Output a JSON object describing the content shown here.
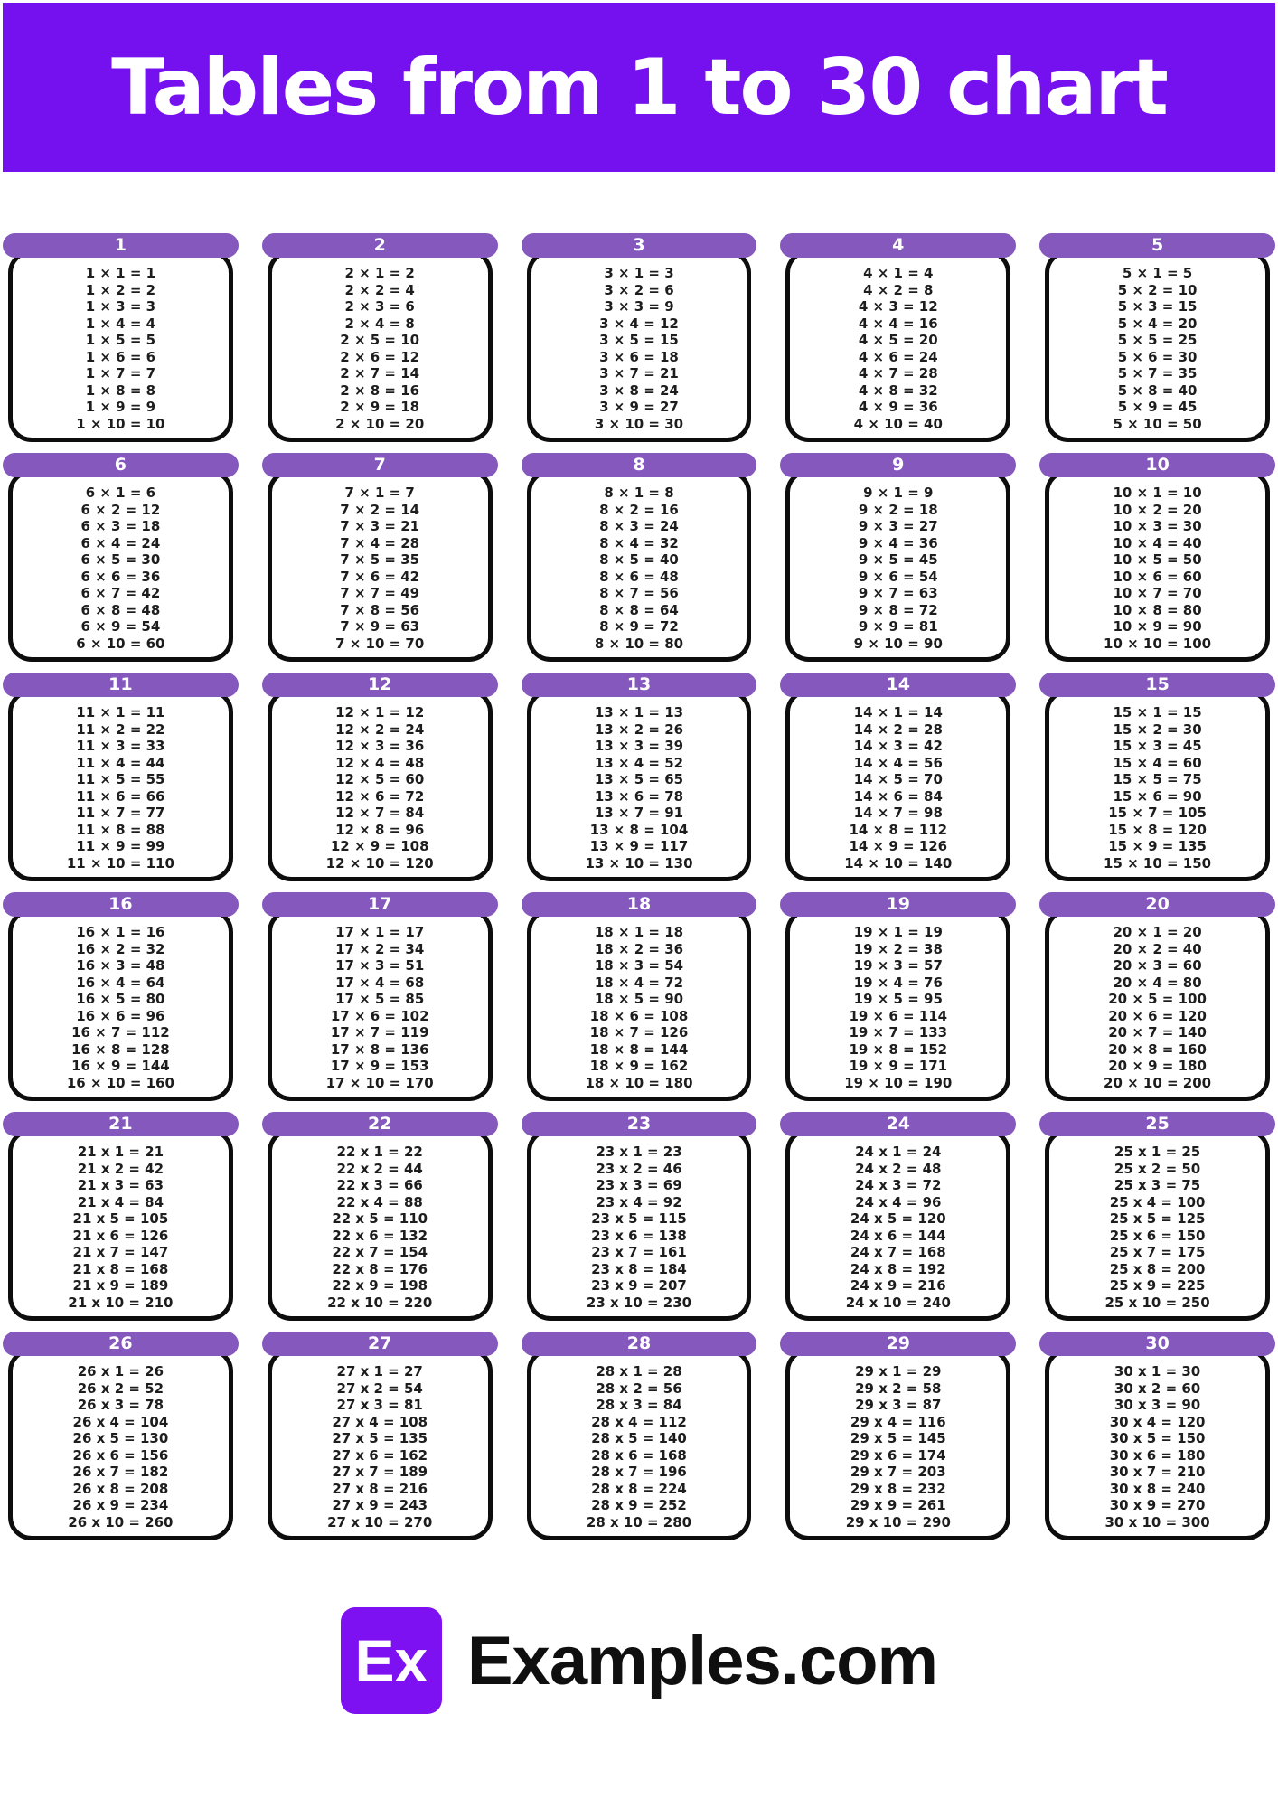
{
  "banner": {
    "title": "Tables from 1 to 30 chart",
    "bg": "#7511EF",
    "text_color": "#FFFFFF"
  },
  "colors": {
    "card_header": "#8558BE",
    "card_border": "#0D0D0D",
    "fact_text": "#1D1D1D",
    "page_bg": "#FFFFFF",
    "footer_logo_bg": "#7D11F2"
  },
  "tables": [
    {
      "n": "1",
      "rows": [
        "1 × 1 = 1",
        "1 × 2 = 2",
        "1 × 3 = 3",
        "1 × 4 = 4",
        "1 × 5 = 5",
        "1 × 6 = 6",
        "1 × 7 = 7",
        "1 × 8 = 8",
        "1 × 9 = 9",
        "1 × 10 = 10"
      ]
    },
    {
      "n": "2",
      "rows": [
        "2 × 1 = 2",
        "2 × 2 = 4",
        "2 × 3 = 6",
        "2 × 4 = 8",
        "2 × 5 = 10",
        "2 × 6 = 12",
        "2 × 7 = 14",
        "2 × 8 = 16",
        "2 × 9 = 18",
        "2 × 10 = 20"
      ]
    },
    {
      "n": "3",
      "rows": [
        "3 × 1 = 3",
        "3 × 2 = 6",
        "3 × 3 = 9",
        "3 × 4 = 12",
        "3 × 5 = 15",
        "3 × 6 = 18",
        "3 × 7 = 21",
        "3 × 8 = 24",
        "3 × 9 = 27",
        "3 × 10 = 30"
      ]
    },
    {
      "n": "4",
      "rows": [
        "4 × 1 = 4",
        "4 × 2 = 8",
        "4 × 3 = 12",
        "4 × 4 = 16",
        "4 × 5 = 20",
        "4 × 6 = 24",
        "4 × 7 = 28",
        "4 × 8 = 32",
        "4 × 9 = 36",
        "4 × 10 = 40"
      ]
    },
    {
      "n": "5",
      "rows": [
        "5 × 1 = 5",
        "5 × 2 = 10",
        "5 × 3 = 15",
        "5 × 4 = 20",
        "5 × 5 = 25",
        "5 × 6 = 30",
        "5 × 7 = 35",
        "5 × 8 = 40",
        "5 × 9 = 45",
        "5 × 10 = 50"
      ]
    },
    {
      "n": "6",
      "rows": [
        "6 × 1 = 6",
        "6 × 2 = 12",
        "6 × 3 = 18",
        "6 × 4 = 24",
        "6 × 5 = 30",
        "6 × 6 = 36",
        "6 × 7 = 42",
        "6 × 8 = 48",
        "6 × 9 = 54",
        "6 × 10 = 60"
      ]
    },
    {
      "n": "7",
      "rows": [
        "7 × 1 = 7",
        "7 × 2 = 14",
        "7 × 3 = 21",
        "7 × 4 = 28",
        "7 × 5 = 35",
        "7 × 6 = 42",
        "7 × 7 = 49",
        "7 × 8 = 56",
        "7 × 9 = 63",
        "7 × 10 = 70"
      ]
    },
    {
      "n": "8",
      "rows": [
        "8 × 1 = 8",
        "8 × 2 = 16",
        "8 × 3 = 24",
        "8 × 4 = 32",
        "8 × 5 = 40",
        "8 × 6 = 48",
        "8 × 7 = 56",
        "8 × 8 = 64",
        "8 × 9 = 72",
        "8 × 10 = 80"
      ]
    },
    {
      "n": "9",
      "rows": [
        "9 × 1 = 9",
        "9 × 2 = 18",
        "9 × 3 = 27",
        "9 × 4 = 36",
        "9 × 5 = 45",
        "9 × 6 = 54",
        "9 × 7 = 63",
        "9 × 8 = 72",
        "9 × 9 = 81",
        "9 × 10 = 90"
      ]
    },
    {
      "n": "10",
      "rows": [
        "10 × 1 = 10",
        "10 × 2 = 20",
        "10 × 3 = 30",
        "10 × 4 = 40",
        "10 × 5 = 50",
        "10 × 6 = 60",
        "10 × 7 = 70",
        "10 × 8 = 80",
        "10 × 9 = 90",
        "10 × 10 = 100"
      ]
    },
    {
      "n": "11",
      "rows": [
        "11 × 1 = 11",
        "11 × 2 = 22",
        "11 × 3 = 33",
        "11 × 4 = 44",
        "11 × 5 = 55",
        "11 × 6 = 66",
        "11 × 7 = 77",
        "11 × 8 = 88",
        "11 × 9 = 99",
        "11 × 10 = 110"
      ]
    },
    {
      "n": "12",
      "rows": [
        "12 × 1 = 12",
        "12 × 2 = 24",
        "12 × 3 = 36",
        "12 × 4 = 48",
        "12 × 5 = 60",
        "12 × 6 = 72",
        "12 × 7 = 84",
        "12 × 8 = 96",
        "12 × 9 = 108",
        "12 × 10 = 120"
      ]
    },
    {
      "n": "13",
      "rows": [
        "13 × 1 = 13",
        "13 × 2 = 26",
        "13 × 3 = 39",
        "13 × 4 = 52",
        "13 × 5 = 65",
        "13 × 6 = 78",
        "13 × 7 = 91",
        "13 × 8 = 104",
        "13 × 9 = 117",
        "13 × 10 = 130"
      ]
    },
    {
      "n": "14",
      "rows": [
        "14 × 1 = 14",
        "14 × 2 = 28",
        "14 × 3 = 42",
        "14 × 4 = 56",
        "14 × 5 = 70",
        "14 × 6 = 84",
        "14 × 7 = 98",
        "14 × 8 = 112",
        "14 × 9 = 126",
        "14 × 10 = 140"
      ]
    },
    {
      "n": "15",
      "rows": [
        "15 × 1 = 15",
        "15 × 2 = 30",
        "15 × 3 = 45",
        "15 × 4 = 60",
        "15 × 5 = 75",
        "15 × 6 = 90",
        "15 × 7 = 105",
        "15 × 8 = 120",
        "15 × 9 = 135",
        "15 × 10 = 150"
      ]
    },
    {
      "n": "16",
      "rows": [
        "16 × 1 = 16",
        "16 × 2 = 32",
        "16 × 3 = 48",
        "16 × 4 = 64",
        "16 × 5 = 80",
        "16 × 6 = 96",
        "16 × 7 = 112",
        "16 × 8 = 128",
        "16 × 9 = 144",
        "16 × 10 = 160"
      ]
    },
    {
      "n": "17",
      "rows": [
        "17 × 1 = 17",
        "17 × 2 = 34",
        "17 × 3 = 51",
        "17 × 4 = 68",
        "17 × 5 = 85",
        "17 × 6 = 102",
        "17 × 7 = 119",
        "17 × 8 = 136",
        "17 × 9 = 153",
        "17 × 10 = 170"
      ]
    },
    {
      "n": "18",
      "rows": [
        "18 × 1 = 18",
        "18 × 2 = 36",
        "18 × 3 = 54",
        "18 × 4 = 72",
        "18 × 5 = 90",
        "18 × 6 = 108",
        "18 × 7 = 126",
        "18 × 8 = 144",
        "18 × 9 = 162",
        "18 × 10 = 180"
      ]
    },
    {
      "n": "19",
      "rows": [
        "19 × 1 = 19",
        "19 × 2 = 38",
        "19 × 3 = 57",
        "19 × 4 = 76",
        "19 × 5 = 95",
        "19 × 6 = 114",
        "19 × 7 = 133",
        "19 × 8 = 152",
        "19 × 9 = 171",
        "19 × 10 = 190"
      ]
    },
    {
      "n": "20",
      "rows": [
        "20 × 1 = 20",
        "20 × 2 = 40",
        "20 × 3 = 60",
        "20 × 4 = 80",
        "20 × 5 = 100",
        "20 × 6 = 120",
        "20 × 7 = 140",
        "20 × 8 = 160",
        "20 × 9 = 180",
        "20 × 10 = 200"
      ]
    },
    {
      "n": "21",
      "rows": [
        "21 x 1 = 21",
        "21 x 2 = 42",
        "21 x 3 = 63",
        "21 x 4 = 84",
        "21 x 5 = 105",
        "21 x 6 = 126",
        "21 x 7 = 147",
        "21 x 8 = 168",
        "21 x 9 = 189",
        "21 x 10 = 210"
      ]
    },
    {
      "n": "22",
      "rows": [
        "22 x 1 = 22",
        "22 x 2 = 44",
        "22 x 3 = 66",
        "22 x 4 = 88",
        "22 x 5 = 110",
        "22 x 6 = 132",
        "22 x 7 = 154",
        "22 x 8 = 176",
        "22 x 9 = 198",
        "22 x 10 = 220"
      ]
    },
    {
      "n": "23",
      "rows": [
        "23 x 1 = 23",
        "23 x 2 = 46",
        "23 x 3 = 69",
        "23 x 4 = 92",
        "23 x 5 = 115",
        "23 x 6 = 138",
        "23 x 7 = 161",
        "23 x 8 = 184",
        "23 x 9 = 207",
        "23 x 10 = 230"
      ]
    },
    {
      "n": "24",
      "rows": [
        "24 x 1 = 24",
        "24 x 2 = 48",
        "24 x 3 = 72",
        "24 x 4 = 96",
        "24 x 5 = 120",
        "24 x 6 = 144",
        "24 x 7 = 168",
        "24 x 8 = 192",
        "24 x 9 = 216",
        "24 x 10 = 240"
      ]
    },
    {
      "n": "25",
      "rows": [
        "25 x 1 = 25",
        "25 x 2 = 50",
        "25 x 3 = 75",
        "25 x 4 = 100",
        "25 x 5 = 125",
        "25 x 6 = 150",
        "25 x 7 = 175",
        "25 x 8 = 200",
        "25 x 9 = 225",
        "25 x 10 = 250"
      ]
    },
    {
      "n": "26",
      "rows": [
        "26 x 1 = 26",
        "26 x 2 = 52",
        "26 x 3 = 78",
        "26 x 4 = 104",
        "26 x 5 = 130",
        "26 x 6 = 156",
        "26 x 7 = 182",
        "26 x 8 = 208",
        "26 x 9 = 234",
        "26 x 10 = 260"
      ]
    },
    {
      "n": "27",
      "rows": [
        "27 x 1 = 27",
        "27 x 2 = 54",
        "27 x 3 = 81",
        "27 x 4 = 108",
        "27 x 5 = 135",
        "27 x 6 = 162",
        "27 x 7 = 189",
        "27 x 8 = 216",
        "27 x 9 = 243",
        "27 x 10 = 270"
      ]
    },
    {
      "n": "28",
      "rows": [
        "28 x 1 = 28",
        "28 x 2 = 56",
        "28 x 3 = 84",
        "28 x 4 = 112",
        "28 x 5 = 140",
        "28 x 6 = 168",
        "28 x 7 = 196",
        "28 x 8 = 224",
        "28 x 9 = 252",
        "28 x 10 = 280"
      ]
    },
    {
      "n": "29",
      "rows": [
        "29 x 1 = 29",
        "29 x 2 = 58",
        "29 x 3 = 87",
        "29 x 4 = 116",
        "29 x 5 = 145",
        "29 x 6 = 174",
        "29 x 7 = 203",
        "29 x 8 = 232",
        "29 x 9 = 261",
        "29 x 10 = 290"
      ]
    },
    {
      "n": "30",
      "rows": [
        "30 x 1 = 30",
        "30 x 2 = 60",
        "30 x 3 = 90",
        "30 x 4 = 120",
        "30 x 5 = 150",
        "30 x 6 = 180",
        "30 x 7 = 210",
        "30 x 8 = 240",
        "30 x 9 = 270",
        "30 x 10 = 300"
      ]
    }
  ],
  "footer": {
    "logo_text": "Ex",
    "brand": "Examples.com"
  }
}
